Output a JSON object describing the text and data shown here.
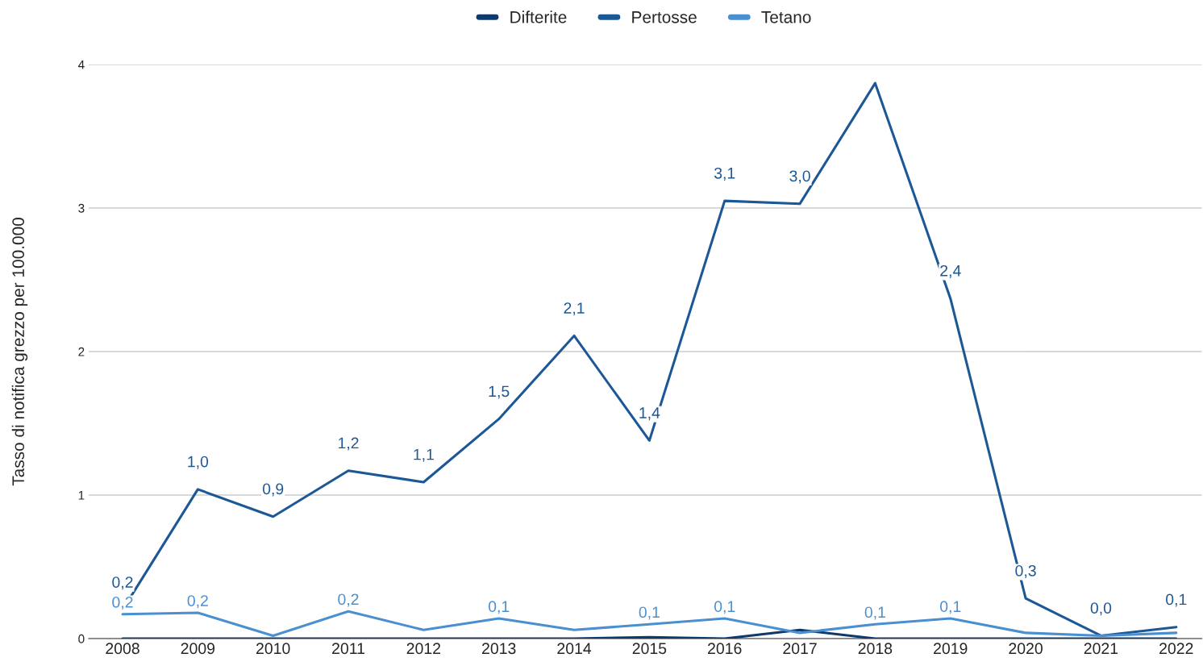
{
  "chart_data": {
    "type": "line",
    "ylabel": "Tasso di notifica grezzo per 100.000",
    "categories": [
      "2008",
      "2009",
      "2010",
      "2011",
      "2012",
      "2013",
      "2014",
      "2015",
      "2016",
      "2017",
      "2018",
      "2019",
      "2020",
      "2021",
      "2022"
    ],
    "series": [
      {
        "name": "Difterite",
        "color": "#0d3a6b",
        "values": [
          0,
          0,
          0,
          0,
          0,
          0,
          0,
          0.01,
          0,
          0.06,
          0,
          0,
          0,
          0,
          0
        ]
      },
      {
        "name": "Pertosse",
        "color": "#1c5796",
        "values": [
          0.2,
          1.04,
          0.85,
          1.17,
          1.09,
          1.53,
          2.11,
          1.38,
          3.05,
          3.03,
          3.87,
          2.37,
          0.28,
          0.02,
          0.08
        ],
        "value_labels": [
          "0,2",
          "1,0",
          "0,9",
          "1,2",
          "1,1",
          "1,5",
          "2,1",
          "1,4",
          "3,1",
          "3,0",
          null,
          "2,4",
          "0,3",
          "0,0",
          "0,1"
        ]
      },
      {
        "name": "Tetano",
        "color": "#4a8fd0",
        "values": [
          0.17,
          0.18,
          0.02,
          0.19,
          0.06,
          0.14,
          0.06,
          0.1,
          0.14,
          0.04,
          0.1,
          0.14,
          0.04,
          0.02,
          0.04
        ],
        "value_labels": [
          "0,2",
          "0,2",
          null,
          "0,2",
          null,
          "0,1",
          null,
          "0,1",
          "0,1",
          null,
          "0,1",
          "0,1",
          null,
          null,
          null
        ]
      }
    ],
    "ylim": [
      0,
      4
    ],
    "yticks": [
      0,
      1,
      2,
      3,
      4
    ],
    "grid": "y",
    "legend": "top",
    "marker": "none",
    "line_style": "solid"
  }
}
